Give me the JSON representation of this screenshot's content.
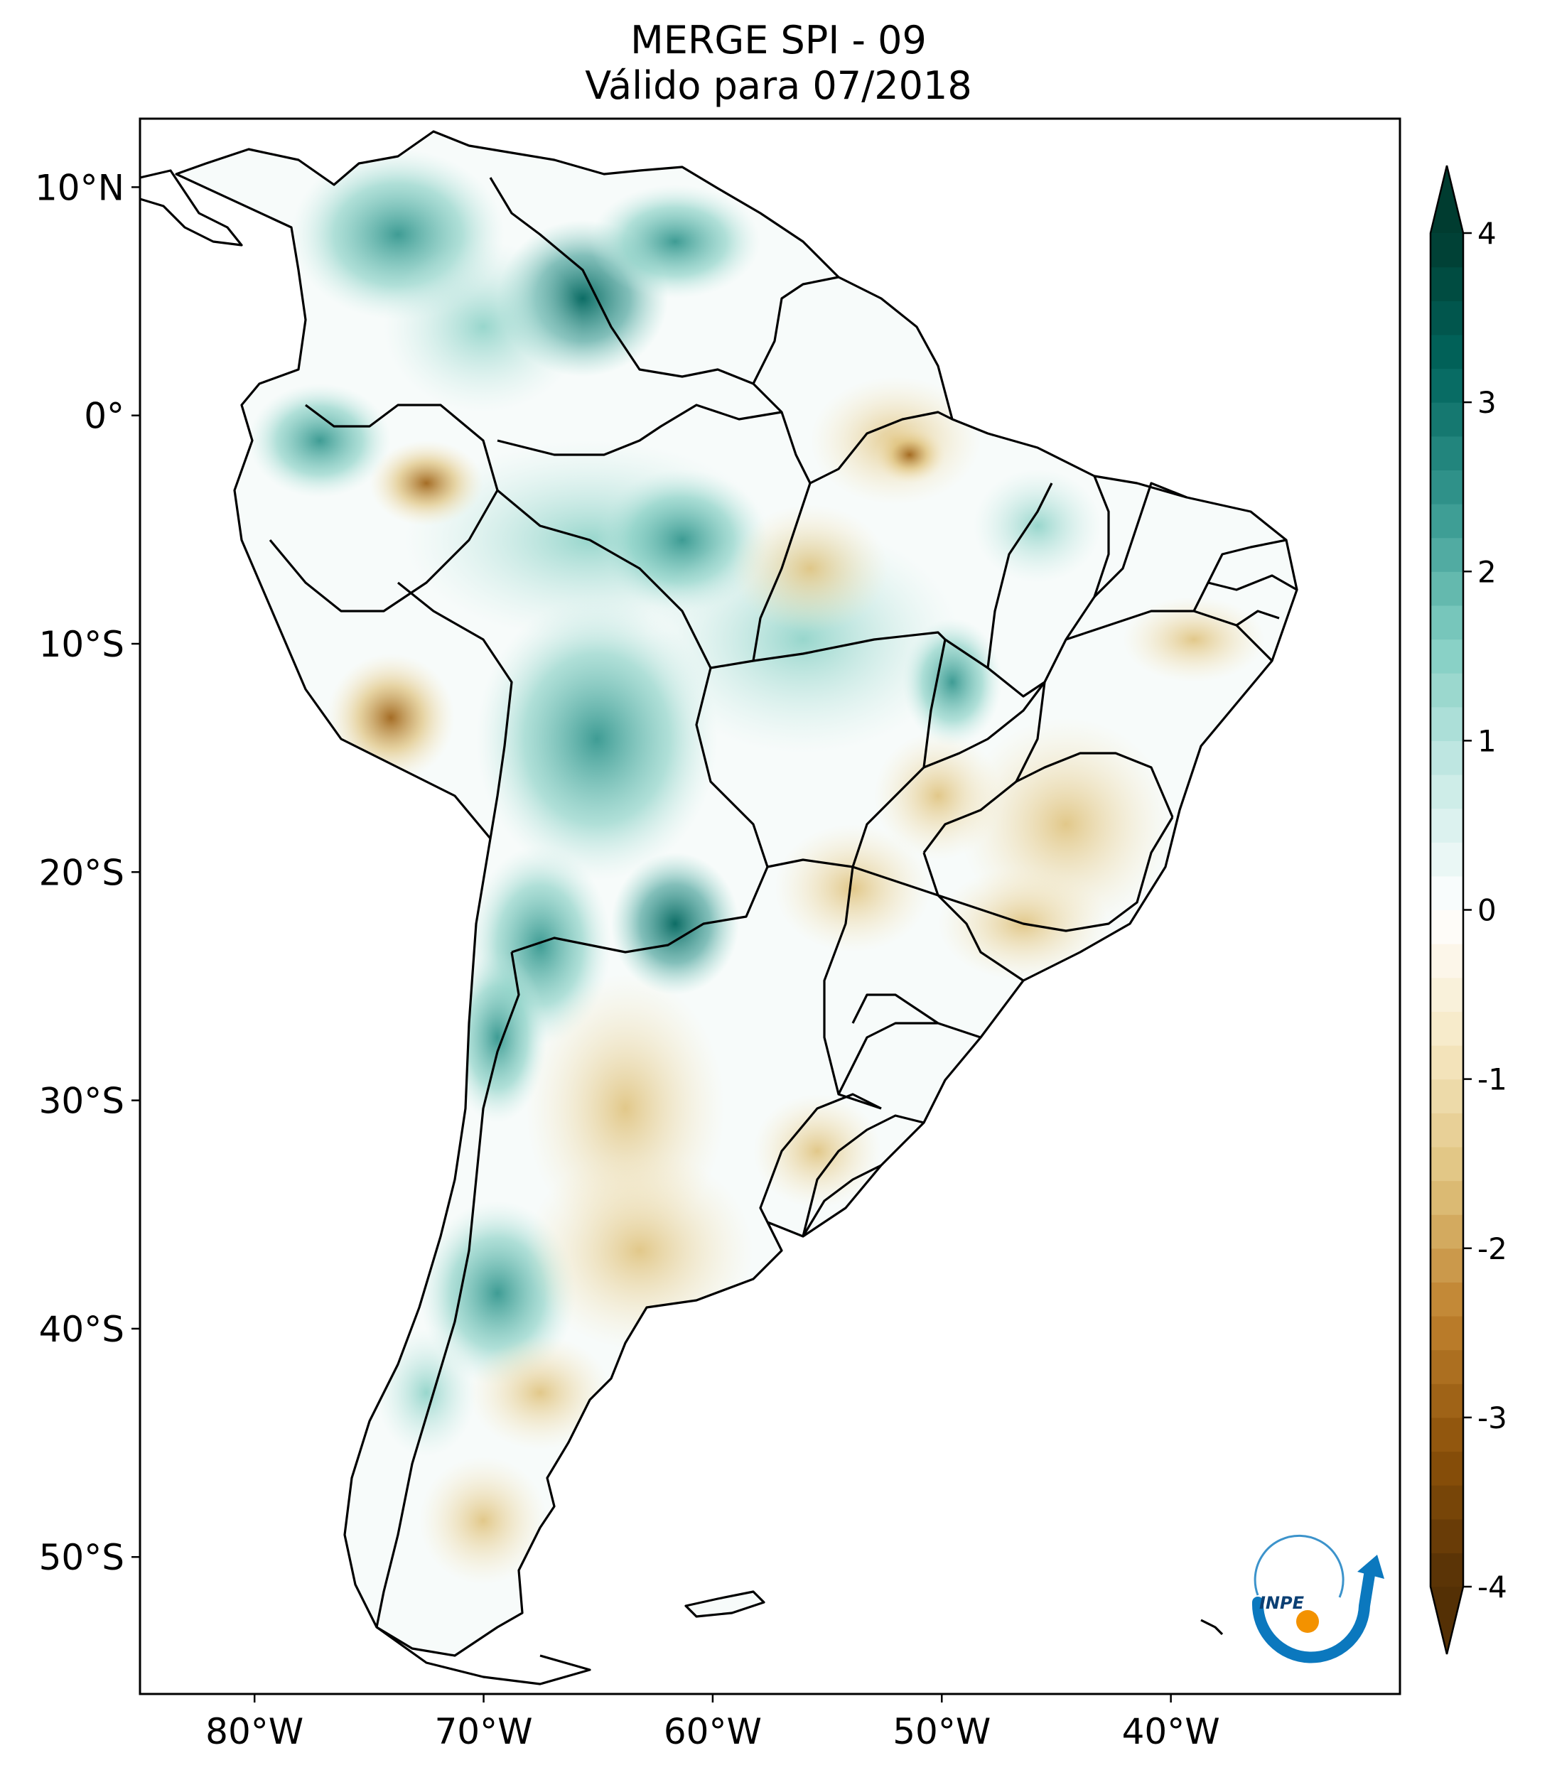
{
  "title": {
    "line1": "MERGE   SPI - 09",
    "line2": "Válido para 07/2018"
  },
  "map": {
    "lon_range": [
      -85,
      -30
    ],
    "lat_range": [
      -56,
      13
    ],
    "lat_ticks": [
      {
        "value": 10,
        "label": "10°N"
      },
      {
        "value": 0,
        "label": "0°"
      },
      {
        "value": -10,
        "label": "10°S"
      },
      {
        "value": -20,
        "label": "20°S"
      },
      {
        "value": -30,
        "label": "30°S"
      },
      {
        "value": -40,
        "label": "40°S"
      },
      {
        "value": -50,
        "label": "50°S"
      }
    ],
    "lon_ticks": [
      {
        "value": -80,
        "label": "80°W"
      },
      {
        "value": -70,
        "label": "70°W"
      },
      {
        "value": -60,
        "label": "60°W"
      },
      {
        "value": -50,
        "label": "50°W"
      },
      {
        "value": -40,
        "label": "40°W"
      }
    ]
  },
  "colorbar": {
    "range": [
      -4,
      4
    ],
    "ticks": [
      {
        "value": 4,
        "label": "4"
      },
      {
        "value": 3,
        "label": "3"
      },
      {
        "value": 2,
        "label": "2"
      },
      {
        "value": 1,
        "label": "1"
      },
      {
        "value": 0,
        "label": "0"
      },
      {
        "value": -1,
        "label": "-1"
      },
      {
        "value": -2,
        "label": "-2"
      },
      {
        "value": -3,
        "label": "-3"
      },
      {
        "value": -4,
        "label": "-4"
      }
    ],
    "colors": [
      "#543005",
      "#8c510a",
      "#bf812d",
      "#dfc27d",
      "#f6e8c3",
      "#ffffff",
      "#c7eae5",
      "#80cdc1",
      "#35978f",
      "#01665e",
      "#003c30"
    ]
  },
  "logo": {
    "text": "INPE",
    "colors": {
      "arc": "#0b78be",
      "dot": "#f39200"
    }
  }
}
